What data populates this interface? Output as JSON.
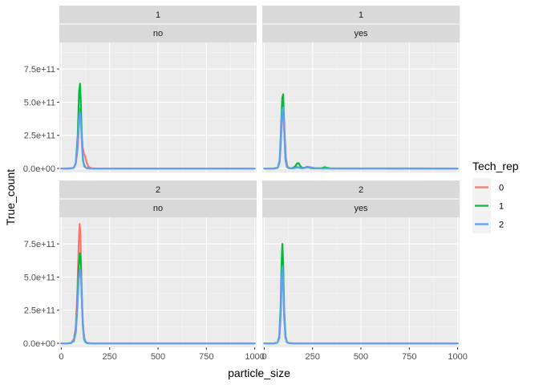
{
  "chart_data": {
    "type": "line",
    "xlabel": "particle_size",
    "ylabel": "True_count",
    "xlim": [
      -10,
      1010
    ],
    "ylim": [
      -30000000000,
      950000000000
    ],
    "x_ticks": [
      0,
      250,
      500,
      750,
      1000
    ],
    "x_tick_labels": [
      "0",
      "250",
      "500",
      "750",
      "1000"
    ],
    "y_ticks": [
      0,
      250000000000,
      500000000000,
      750000000000
    ],
    "y_tick_labels": [
      "0.0e+00",
      "2.5e+11",
      "5.0e+11",
      "7.5e+11"
    ],
    "grid": true,
    "legend": {
      "title": "Tech_rep",
      "position": "right",
      "entries": [
        {
          "label": "0",
          "color": "#F8766D"
        },
        {
          "label": "1",
          "color": "#00BA38"
        },
        {
          "label": "2",
          "color": "#619CFF"
        }
      ]
    },
    "panels": [
      {
        "strip_top": "1",
        "strip_bottom": "no",
        "series": [
          {
            "name": "0",
            "color": "#F8766D",
            "x": [
              0,
              30,
              50,
              65,
              75,
              85,
              92,
              97,
              103,
              110,
              117,
              123,
              130,
              140,
              150,
              160,
              175,
              200,
              250,
              1000
            ],
            "y": [
              0,
              0,
              1000000000,
              5000000000,
              40000000000,
              150000000000,
              350000000000,
              450000000000,
              350000000000,
              160000000000,
              110000000000,
              95000000000,
              50000000000,
              15000000000,
              5000000000,
              1000000000,
              0,
              0,
              0,
              0
            ]
          },
          {
            "name": "1",
            "color": "#00BA38",
            "x": [
              0,
              30,
              50,
              65,
              75,
              85,
              92,
              97,
              101,
              106,
              112,
              120,
              130,
              140,
              150,
              175,
              200,
              250,
              1000
            ],
            "y": [
              0,
              0,
              1000000000,
              5000000000,
              40000000000,
              250000000000,
              580000000000,
              640000000000,
              500000000000,
              220000000000,
              60000000000,
              15000000000,
              3000000000,
              1000000000,
              0,
              0,
              0,
              0,
              0
            ]
          },
          {
            "name": "2",
            "color": "#619CFF",
            "x": [
              0,
              30,
              50,
              65,
              75,
              85,
              92,
              97,
              102,
              108,
              115,
              125,
              135,
              150,
              175,
              200,
              250,
              1000
            ],
            "y": [
              0,
              0,
              1000000000,
              5000000000,
              40000000000,
              200000000000,
              380000000000,
              420000000000,
              330000000000,
              150000000000,
              40000000000,
              10000000000,
              2000000000,
              0,
              0,
              0,
              0,
              0
            ]
          }
        ]
      },
      {
        "strip_top": "1",
        "strip_bottom": "yes",
        "series": [
          {
            "name": "0",
            "color": "#F8766D",
            "x": [
              0,
              50,
              70,
              80,
              88,
              95,
              100,
              106,
              112,
              120,
              130,
              150,
              165,
              175,
              185,
              200,
              215,
              225,
              235,
              245,
              260,
              300,
              315,
              330,
              360,
              1000
            ],
            "y": [
              0,
              0,
              5000000000,
              50000000000,
              250000000000,
              430000000000,
              440000000000,
              250000000000,
              80000000000,
              15000000000,
              3000000000,
              2000000000,
              10000000000,
              12000000000,
              5000000000,
              3000000000,
              8000000000,
              12000000000,
              10000000000,
              7000000000,
              3000000000,
              1000000000,
              4000000000,
              1000000000,
              0,
              0
            ]
          },
          {
            "name": "1",
            "color": "#00BA38",
            "x": [
              0,
              50,
              70,
              80,
              87,
              93,
              98,
              103,
              110,
              118,
              130,
              145,
              160,
              170,
              178,
              186,
              195,
              210,
              222,
              230,
              240,
              270,
              300,
              312,
              322,
              340,
              1000
            ],
            "y": [
              0,
              0,
              5000000000,
              60000000000,
              300000000000,
              530000000000,
              560000000000,
              330000000000,
              70000000000,
              10000000000,
              2000000000,
              2000000000,
              15000000000,
              38000000000,
              40000000000,
              20000000000,
              5000000000,
              5000000000,
              12000000000,
              8000000000,
              3000000000,
              1000000000,
              3000000000,
              10000000000,
              6000000000,
              1000000000,
              0
            ]
          },
          {
            "name": "2",
            "color": "#619CFF",
            "x": [
              0,
              50,
              70,
              80,
              87,
              93,
              98,
              104,
              110,
              118,
              130,
              150,
              165,
              175,
              185,
              200,
              215,
              228,
              238,
              255,
              300,
              1000
            ],
            "y": [
              0,
              0,
              5000000000,
              50000000000,
              260000000000,
              440000000000,
              460000000000,
              270000000000,
              60000000000,
              10000000000,
              2000000000,
              1000000000,
              5000000000,
              7000000000,
              3000000000,
              1000000000,
              5000000000,
              10000000000,
              7000000000,
              2000000000,
              0,
              0
            ]
          }
        ]
      },
      {
        "strip_top": "2",
        "strip_bottom": "no",
        "series": [
          {
            "name": "0",
            "color": "#F8766D",
            "x": [
              0,
              30,
              50,
              65,
              75,
              83,
              90,
              95,
              99,
              103,
              108,
              115,
              122,
              130,
              140,
              150,
              175,
              200,
              1000
            ],
            "y": [
              0,
              0,
              3000000000,
              30000000000,
              120000000000,
              380000000000,
              750000000000,
              900000000000,
              820000000000,
              550000000000,
              250000000000,
              80000000000,
              20000000000,
              5000000000,
              1000000000,
              0,
              0,
              0,
              0
            ]
          },
          {
            "name": "1",
            "color": "#00BA38",
            "x": [
              0,
              30,
              50,
              65,
              75,
              83,
              90,
              96,
              101,
              106,
              112,
              118,
              125,
              135,
              150,
              175,
              200,
              1000
            ],
            "y": [
              0,
              0,
              2000000000,
              20000000000,
              90000000000,
              300000000000,
              580000000000,
              680000000000,
              600000000000,
              350000000000,
              120000000000,
              30000000000,
              8000000000,
              1000000000,
              0,
              0,
              0,
              0
            ]
          },
          {
            "name": "2",
            "color": "#619CFF",
            "x": [
              0,
              30,
              50,
              65,
              75,
              83,
              90,
              97,
              102,
              107,
              113,
              120,
              128,
              140,
              160,
              200,
              1000
            ],
            "y": [
              0,
              0,
              2000000000,
              15000000000,
              80000000000,
              260000000000,
              480000000000,
              560000000000,
              500000000000,
              300000000000,
              110000000000,
              30000000000,
              7000000000,
              1000000000,
              0,
              0,
              0
            ]
          }
        ]
      },
      {
        "strip_top": "2",
        "strip_bottom": "yes",
        "series": [
          {
            "name": "0",
            "color": "#F8766D",
            "x": [
              0,
              50,
              68,
              78,
              85,
              90,
              94,
              98,
              103,
              110,
              118,
              130,
              150,
              200,
              1000
            ],
            "y": [
              0,
              0,
              4000000000,
              40000000000,
              200000000000,
              450000000000,
              560000000000,
              480000000000,
              220000000000,
              50000000000,
              8000000000,
              1000000000,
              0,
              0,
              0
            ]
          },
          {
            "name": "1",
            "color": "#00BA38",
            "x": [
              0,
              50,
              68,
              78,
              85,
              90,
              94,
              98,
              103,
              110,
              118,
              130,
              150,
              200,
              1000
            ],
            "y": [
              0,
              0,
              4000000000,
              50000000000,
              280000000000,
              620000000000,
              750000000000,
              600000000000,
              250000000000,
              50000000000,
              8000000000,
              1000000000,
              0,
              0,
              0
            ]
          },
          {
            "name": "2",
            "color": "#619CFF",
            "x": [
              0,
              50,
              68,
              78,
              85,
              90,
              94,
              98,
              103,
              110,
              118,
              130,
              150,
              200,
              1000
            ],
            "y": [
              0,
              0,
              4000000000,
              40000000000,
              220000000000,
              480000000000,
              580000000000,
              480000000000,
              200000000000,
              40000000000,
              6000000000,
              1000000000,
              0,
              0,
              0
            ]
          }
        ]
      }
    ]
  }
}
